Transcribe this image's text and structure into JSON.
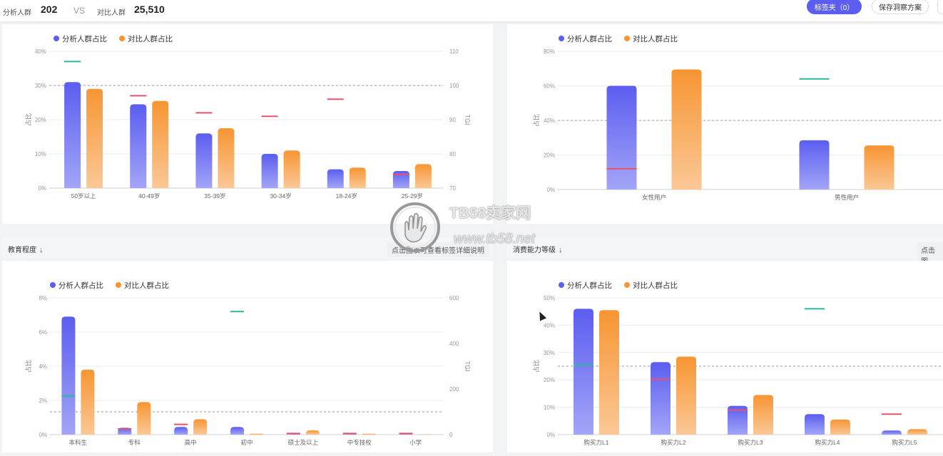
{
  "header": {
    "analysis_label": "分析人群",
    "analysis_count": "202",
    "vs": "VS",
    "compare_label": "对比人群",
    "compare_count": "25,510",
    "tag_button": "标签夹（0）",
    "save_button": "保存洞察方案"
  },
  "sections": {
    "education_title": "教育程度",
    "consumption_title": "消费能力等级",
    "education_hint": "点击图表可查看标签详细说明",
    "consumption_hint": "点击图"
  },
  "watermark": {
    "title": "TB58卖家网",
    "url": "www.tb58.net"
  },
  "colors": {
    "analysis": "#5b5ef0",
    "compare": "#f79533",
    "tgi_high": "#2bb89a",
    "tgi_low": "#e8536b",
    "baseline": "#999999"
  },
  "chart_data": [
    {
      "id": "age",
      "type": "bar",
      "legend": [
        "分析人群占比",
        "对比人群占比"
      ],
      "categories": [
        "50岁以上",
        "40-49岁",
        "35-39岁",
        "30-34岁",
        "18-24岁",
        "25-29岁"
      ],
      "series": [
        {
          "name": "分析人群占比",
          "values": [
            31,
            24.5,
            16,
            10,
            5.5,
            5
          ]
        },
        {
          "name": "对比人群占比",
          "values": [
            29,
            25.5,
            17.5,
            11,
            6,
            7
          ]
        }
      ],
      "tgi": [
        107,
        97,
        92,
        91,
        96,
        74
      ],
      "ylabel": "占比",
      "y2label": "TGI",
      "ylim": [
        0,
        40
      ],
      "yticks": [
        "0%",
        "10%",
        "20%",
        "30%",
        "40%"
      ],
      "y2lim": [
        70,
        110
      ],
      "y2ticks": [
        "70",
        "80",
        "90",
        "100",
        "110"
      ],
      "baseline_tgi": 100
    },
    {
      "id": "gender",
      "type": "bar",
      "legend": [
        "分析人群占比",
        "对比人群占比"
      ],
      "categories": [
        "女性用户",
        "男性用户"
      ],
      "series": [
        {
          "name": "分析人群占比",
          "values": [
            60,
            28.5
          ]
        },
        {
          "name": "对比人群占比",
          "values": [
            69.5,
            25.5
          ]
        }
      ],
      "tgi": [
        86,
        112
      ],
      "ylabel": "占比",
      "ylim": [
        0,
        80
      ],
      "yticks": [
        "0%",
        "20%",
        "40%",
        "60%",
        "80%"
      ],
      "y2lim": [
        80,
        120
      ],
      "baseline_tgi": 100
    },
    {
      "id": "education",
      "type": "bar",
      "legend": [
        "分析人群占比",
        "对比人群占比"
      ],
      "categories": [
        "本科生",
        "专科",
        "高中",
        "初中",
        "硕士及以上",
        "中专技校",
        "小学"
      ],
      "series": [
        {
          "name": "分析人群占比",
          "values": [
            6.9,
            0.4,
            0.45,
            0.45,
            0.02,
            0.02,
            0.02
          ]
        },
        {
          "name": "对比人群占比",
          "values": [
            3.8,
            1.9,
            0.9,
            0.05,
            0.25,
            0.05,
            0.01
          ]
        }
      ],
      "tgi": [
        170,
        25,
        45,
        540,
        5,
        5,
        5
      ],
      "ylabel": "占比",
      "y2label": "TGI",
      "ylim": [
        0,
        8
      ],
      "yticks": [
        "0%",
        "2%",
        "4%",
        "6%",
        "8%"
      ],
      "y2lim": [
        0,
        600
      ],
      "y2ticks": [
        "0",
        "200",
        "400",
        "600"
      ],
      "baseline_tgi": 100
    },
    {
      "id": "consumption",
      "type": "bar",
      "legend": [
        "分析人群占比",
        "对比人群占比"
      ],
      "categories": [
        "购买力L1",
        "购买力L2",
        "购买力L3",
        "购买力L4",
        "购买力L5"
      ],
      "series": [
        {
          "name": "分析人群占比",
          "values": [
            46,
            26.5,
            10.5,
            7.5,
            1.5
          ]
        },
        {
          "name": "对比人群占比",
          "values": [
            45.5,
            28.5,
            14.5,
            5.5,
            2
          ]
        }
      ],
      "tgi": [
        102,
        81,
        36,
        184,
        30
      ],
      "ylabel": "占比",
      "ylim": [
        0,
        50
      ],
      "yticks": [
        "0%",
        "10%",
        "20%",
        "30%",
        "40%",
        "50%"
      ],
      "y2lim": [
        0,
        200
      ],
      "baseline_tgi": 100
    }
  ]
}
